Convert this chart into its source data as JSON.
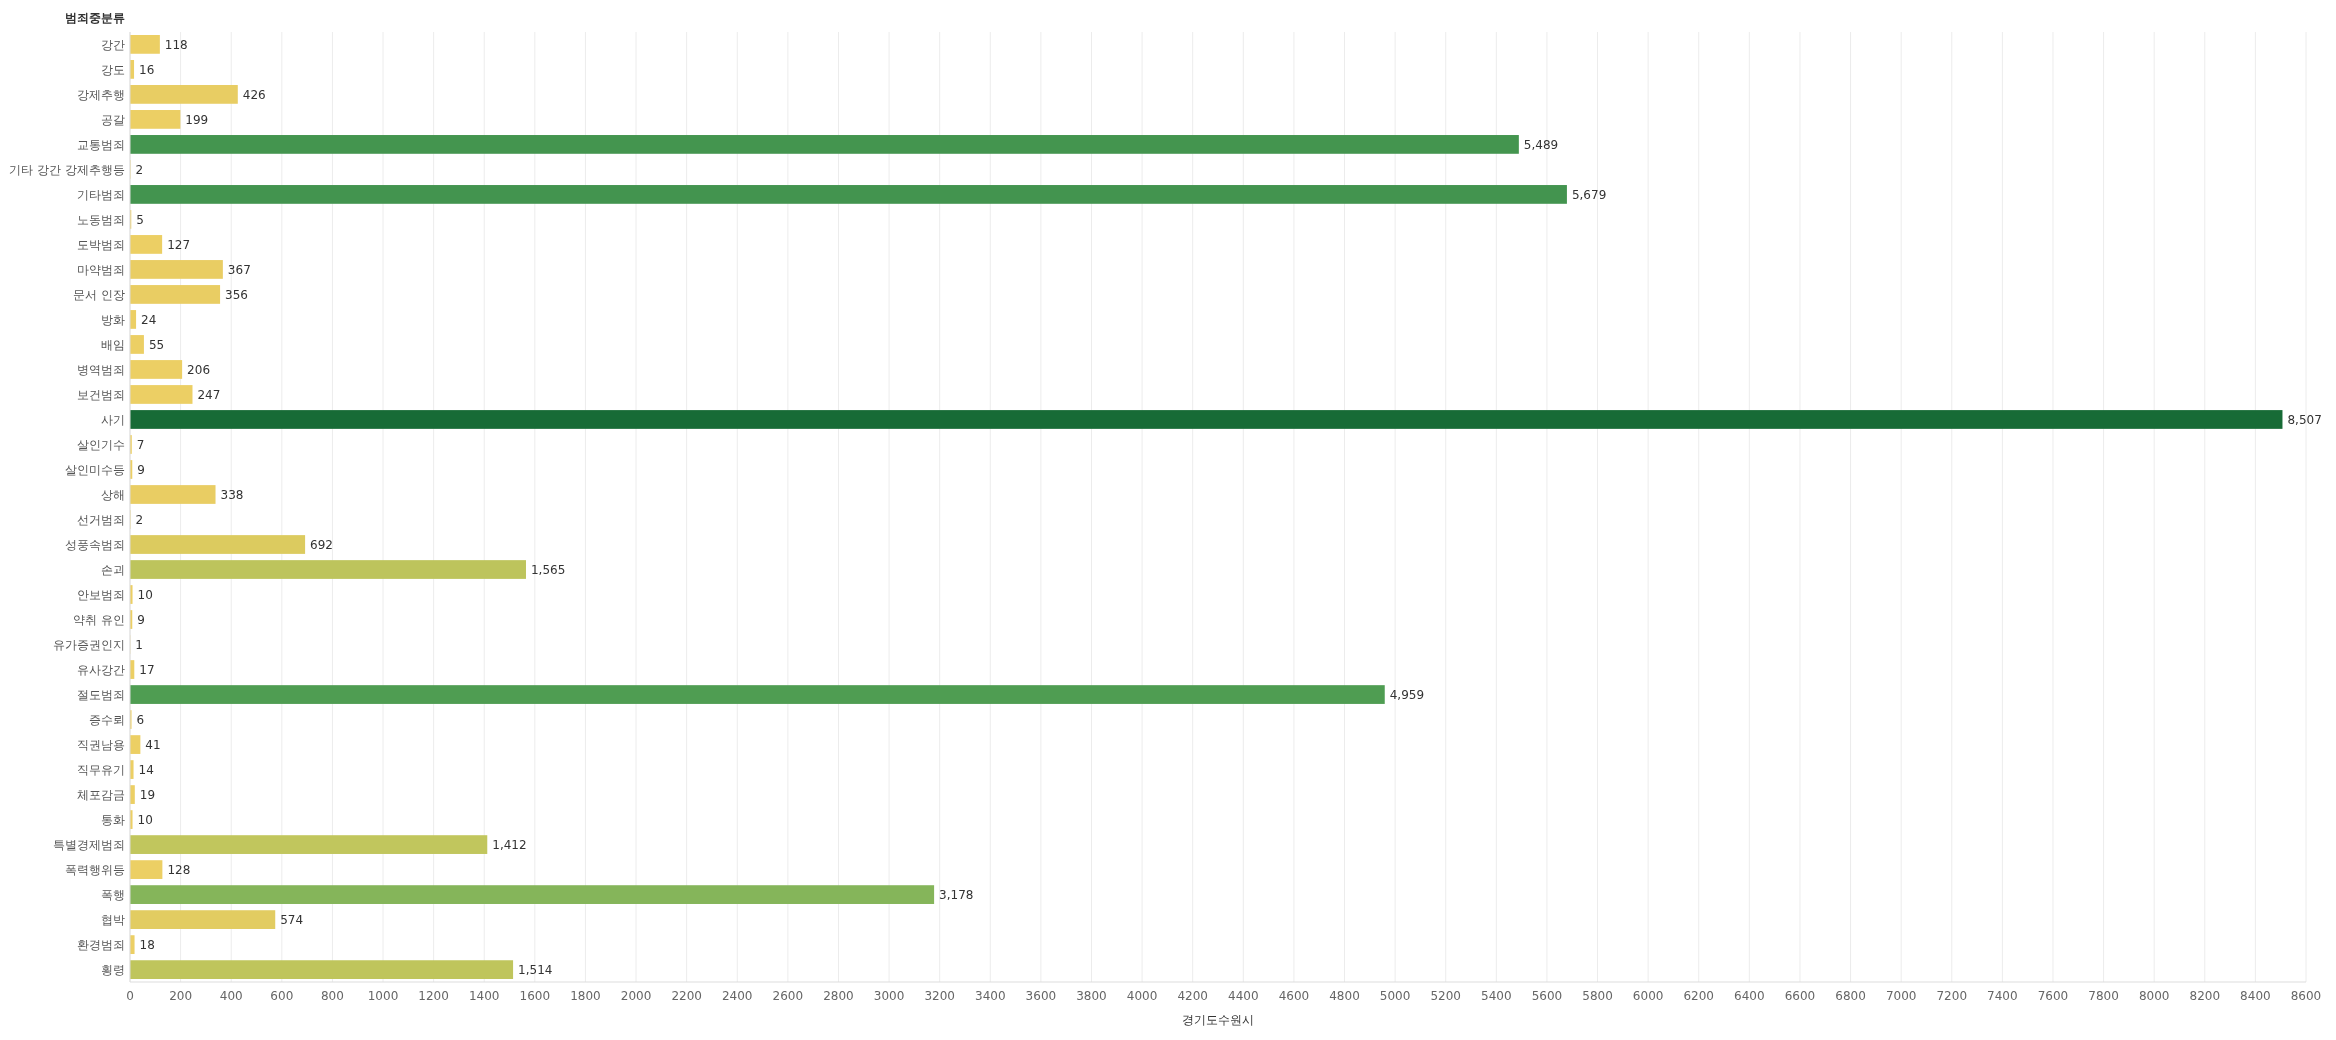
{
  "chart_data": {
    "type": "bar",
    "orientation": "horizontal",
    "ylabel": "범죄중분류",
    "xlabel": "경기도수원시",
    "categories": [
      "강간",
      "강도",
      "강제추행",
      "공갈",
      "교통범죄",
      "기타 강간 강제추행등",
      "기타범죄",
      "노동범죄",
      "도박범죄",
      "마약범죄",
      "문서 인장",
      "방화",
      "배임",
      "병역범죄",
      "보건범죄",
      "사기",
      "살인기수",
      "살인미수등",
      "상해",
      "선거범죄",
      "성풍속범죄",
      "손괴",
      "안보범죄",
      "약취 유인",
      "유가증권인지",
      "유사강간",
      "절도범죄",
      "증수뢰",
      "직권남용",
      "직무유기",
      "체포감금",
      "통화",
      "특별경제범죄",
      "폭력행위등",
      "폭행",
      "협박",
      "환경범죄",
      "횡령"
    ],
    "values": [
      118,
      16,
      426,
      199,
      5489,
      2,
      5679,
      5,
      127,
      367,
      356,
      24,
      55,
      206,
      247,
      8507,
      7,
      9,
      338,
      2,
      692,
      1565,
      10,
      9,
      1,
      17,
      4959,
      6,
      41,
      14,
      19,
      10,
      1412,
      128,
      3178,
      574,
      18,
      1514
    ],
    "colors": [
      "#eccf64",
      "#eccf64",
      "#e8cd63",
      "#eccf64",
      "#44954f",
      "#eccf64",
      "#43944f",
      "#eccf64",
      "#eccf64",
      "#e9cd63",
      "#e9cd63",
      "#eccf64",
      "#eccf64",
      "#eccf64",
      "#eccf64",
      "#176b36",
      "#eccf64",
      "#eccf64",
      "#e9cd63",
      "#eccf64",
      "#dccb5f",
      "#bdc45c",
      "#eccf64",
      "#eccf64",
      "#eccf64",
      "#eccf64",
      "#4f9d52",
      "#eccf64",
      "#eccf64",
      "#eccf64",
      "#eccf64",
      "#eccf64",
      "#c1c65d",
      "#eccf64",
      "#85b55a",
      "#e2cc61",
      "#eccf64",
      "#bfc55c"
    ],
    "xlim": [
      0,
      8600
    ],
    "xticks": [
      0,
      200,
      400,
      600,
      800,
      1000,
      1200,
      1400,
      1600,
      1800,
      2000,
      2200,
      2400,
      2600,
      2800,
      3000,
      3200,
      3400,
      3600,
      3800,
      4000,
      4200,
      4400,
      4600,
      4800,
      5000,
      5200,
      5400,
      5600,
      5800,
      6000,
      6200,
      6400,
      6600,
      6800,
      7000,
      7200,
      7400,
      7600,
      7800,
      8000,
      8200,
      8400,
      8600
    ],
    "value_labels": [
      "118",
      "16",
      "426",
      "199",
      "5,489",
      "2",
      "5,679",
      "5",
      "127",
      "367",
      "356",
      "24",
      "55",
      "206",
      "247",
      "8,507",
      "7",
      "9",
      "338",
      "2",
      "692",
      "1,565",
      "10",
      "9",
      "1",
      "17",
      "4,959",
      "6",
      "41",
      "14",
      "19",
      "10",
      "1,412",
      "128",
      "3,178",
      "574",
      "18",
      "1,514"
    ],
    "grid": "x"
  }
}
